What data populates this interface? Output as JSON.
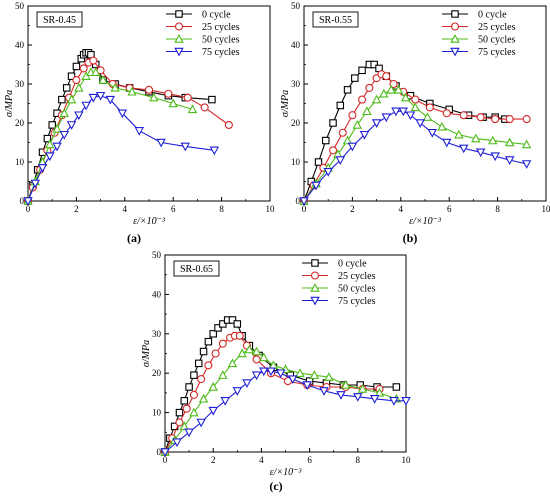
{
  "colors": {
    "0 cycle": "#000000",
    "25 cycles": "#d62728",
    "50 cycles": "#4cbb17",
    "75 cycles": "#1f1fd6"
  },
  "chart_data": [
    {
      "type": "line",
      "title": "SR-0.45",
      "caption": "(a)",
      "xlabel": "ε/×10⁻³",
      "ylabel": "σ/MPa",
      "xlim": [
        0,
        10
      ],
      "ylim": [
        0,
        50
      ],
      "xticks": [
        "0",
        "2",
        "4",
        "6",
        "8",
        "10"
      ],
      "yticks": [
        "0",
        "10",
        "20",
        "30",
        "40",
        "50"
      ],
      "grid": false,
      "legend_position": "top-right",
      "series": [
        {
          "name": "0 cycle",
          "marker": "square",
          "x": [
            0,
            0.2,
            0.4,
            0.6,
            0.8,
            1.0,
            1.2,
            1.4,
            1.6,
            1.8,
            2.0,
            2.2,
            2.3,
            2.4,
            2.5,
            2.6,
            2.8,
            3.1,
            3.6,
            4.2,
            5.0,
            5.8,
            6.5,
            7.6
          ],
          "y": [
            0,
            4,
            8,
            12.5,
            16,
            19.5,
            22.5,
            26,
            29,
            32,
            34.5,
            36.5,
            37.5,
            38,
            38,
            37.5,
            35,
            31,
            30,
            29,
            28,
            27,
            26.5,
            26
          ]
        },
        {
          "name": "25 cycles",
          "marker": "circle",
          "x": [
            0,
            0.2,
            0.5,
            0.8,
            1.1,
            1.4,
            1.7,
            2.0,
            2.3,
            2.5,
            2.7,
            3.0,
            3.5,
            4.2,
            5.0,
            5.8,
            6.6,
            7.3,
            8.3
          ],
          "y": [
            0,
            3.5,
            8,
            13,
            17.5,
            22,
            26.5,
            31,
            34,
            35.5,
            36,
            33.5,
            30,
            29,
            28.5,
            27.5,
            26.5,
            24,
            19.5
          ]
        },
        {
          "name": "50 cycles",
          "marker": "triangle-up",
          "x": [
            0,
            0.3,
            0.6,
            0.9,
            1.2,
            1.5,
            1.8,
            2.1,
            2.4,
            2.6,
            2.8,
            3.1,
            3.6,
            4.3,
            5.2,
            6.0,
            6.8
          ],
          "y": [
            0,
            5,
            10,
            14.5,
            18.5,
            22.5,
            26,
            29,
            32,
            33,
            33,
            31,
            29,
            28,
            26.5,
            25,
            23.5
          ]
        },
        {
          "name": "75 cycles",
          "marker": "triangle-down",
          "x": [
            0,
            0.3,
            0.6,
            0.9,
            1.2,
            1.5,
            1.8,
            2.1,
            2.4,
            2.7,
            3.0,
            3.4,
            3.9,
            4.6,
            5.5,
            6.5,
            7.7
          ],
          "y": [
            0,
            4.5,
            8.5,
            11.5,
            14,
            17,
            19.5,
            22,
            24.5,
            26.5,
            27,
            26,
            22.5,
            18,
            15,
            14,
            13
          ]
        }
      ]
    },
    {
      "type": "line",
      "title": "SR-0.55",
      "caption": "(b)",
      "xlabel": "ε/×10⁻³",
      "ylabel": "σ/MPa",
      "xlim": [
        0,
        10
      ],
      "ylim": [
        0,
        50
      ],
      "xticks": [
        "0",
        "2",
        "4",
        "6",
        "8",
        "10"
      ],
      "yticks": [
        "0",
        "10",
        "20",
        "30",
        "40",
        "50"
      ],
      "grid": false,
      "legend_position": "top-right",
      "series": [
        {
          "name": "0 cycle",
          "marker": "square",
          "x": [
            0,
            0.3,
            0.6,
            0.9,
            1.2,
            1.5,
            1.8,
            2.1,
            2.4,
            2.7,
            2.9,
            3.1,
            3.4,
            3.8,
            4.4,
            5.2,
            6.0,
            6.8,
            7.4,
            7.9,
            8.3
          ],
          "y": [
            0,
            5,
            10,
            15.5,
            20,
            24.5,
            28.5,
            31.5,
            33.5,
            35,
            35,
            34,
            32,
            29.5,
            27,
            25,
            23.5,
            22,
            21.5,
            21.5,
            21
          ]
        },
        {
          "name": "25 cycles",
          "marker": "circle",
          "x": [
            0,
            0.4,
            0.8,
            1.2,
            1.6,
            2.0,
            2.4,
            2.7,
            3.0,
            3.2,
            3.4,
            3.7,
            4.1,
            4.6,
            5.2,
            5.9,
            6.6,
            7.3,
            7.9,
            8.5,
            9.2
          ],
          "y": [
            0,
            4,
            8.5,
            13,
            17.5,
            22,
            26,
            29,
            31.5,
            32.5,
            32,
            30,
            28,
            26,
            24,
            22.5,
            22,
            21.5,
            21,
            21,
            21
          ]
        },
        {
          "name": "50 cycles",
          "marker": "triangle-up",
          "x": [
            0,
            0.5,
            1.0,
            1.4,
            1.8,
            2.2,
            2.6,
            3.0,
            3.3,
            3.6,
            3.9,
            4.2,
            4.6,
            5.1,
            5.7,
            6.4,
            7.1,
            7.8,
            8.5,
            9.2
          ],
          "y": [
            0,
            4.5,
            8.5,
            12,
            15.5,
            19.5,
            23,
            26,
            27.5,
            28.5,
            28.5,
            26.5,
            24,
            21.5,
            19,
            17,
            16,
            15.5,
            15,
            14.5
          ]
        },
        {
          "name": "75 cycles",
          "marker": "triangle-down",
          "x": [
            0,
            0.5,
            1.0,
            1.5,
            2.0,
            2.5,
            3.0,
            3.4,
            3.8,
            4.1,
            4.4,
            4.8,
            5.3,
            5.9,
            6.6,
            7.3,
            7.9,
            8.5,
            9.2
          ],
          "y": [
            0,
            4,
            7.5,
            10.5,
            14,
            17,
            20,
            21.5,
            23,
            23,
            22,
            20,
            17.5,
            15,
            13.5,
            12.5,
            11.5,
            10.5,
            9.5
          ]
        }
      ]
    },
    {
      "type": "line",
      "title": "SR-0.65",
      "caption": "(c)",
      "xlabel": "ε/×10⁻³",
      "ylabel": "σ/MPa",
      "xlim": [
        0,
        10
      ],
      "ylim": [
        0,
        50
      ],
      "xticks": [
        "0",
        "2",
        "4",
        "6",
        "8",
        "10"
      ],
      "yticks": [
        "0",
        "10",
        "20",
        "30",
        "40",
        "50"
      ],
      "grid": false,
      "legend_position": "top-right",
      "series": [
        {
          "name": "0 cycle",
          "marker": "square",
          "x": [
            0,
            0.2,
            0.4,
            0.6,
            0.8,
            1.0,
            1.2,
            1.4,
            1.6,
            1.8,
            2.0,
            2.2,
            2.4,
            2.6,
            2.8,
            3.0,
            3.2,
            3.5,
            3.9,
            4.5,
            5.2,
            6.0,
            6.7,
            7.4,
            8.1,
            8.8,
            9.6
          ],
          "y": [
            0,
            3.5,
            6.5,
            10,
            13,
            16.5,
            19.5,
            22.5,
            25.5,
            28,
            30,
            31.5,
            32.5,
            33.5,
            33.5,
            32.5,
            29.5,
            27,
            24.5,
            21.5,
            19.5,
            18,
            17.5,
            17,
            17,
            16.5,
            16.5
          ]
        },
        {
          "name": "25 cycles",
          "marker": "circle",
          "x": [
            0,
            0.3,
            0.6,
            0.9,
            1.2,
            1.5,
            1.8,
            2.1,
            2.4,
            2.7,
            2.9,
            3.1,
            3.4,
            3.8,
            4.4,
            5.1,
            5.9,
            6.7,
            7.5,
            8.2,
            8.9
          ],
          "y": [
            0,
            3.5,
            7.5,
            11,
            14.5,
            18.5,
            22,
            25,
            27.5,
            29,
            29.5,
            29.5,
            27,
            23.5,
            20,
            18,
            17,
            16.5,
            16.5,
            16,
            16
          ]
        },
        {
          "name": "50 cycles",
          "marker": "triangle-up",
          "x": [
            0,
            0.4,
            0.8,
            1.2,
            1.6,
            2.0,
            2.4,
            2.8,
            3.2,
            3.5,
            3.8,
            4.1,
            4.5,
            5.0,
            5.6,
            6.2,
            6.8,
            7.5,
            8.2,
            8.9,
            9.6
          ],
          "y": [
            0,
            3,
            6.5,
            10,
            13.5,
            16.5,
            19.5,
            22.5,
            25,
            26,
            25.5,
            24,
            22,
            21,
            20,
            19.5,
            19,
            17,
            16,
            15,
            13.5
          ]
        },
        {
          "name": "75 cycles",
          "marker": "triangle-down",
          "x": [
            0,
            0.5,
            1.0,
            1.5,
            2.0,
            2.5,
            3.0,
            3.4,
            3.8,
            4.1,
            4.4,
            4.8,
            5.3,
            5.9,
            6.6,
            7.3,
            8.0,
            8.7,
            9.5,
            10.0
          ],
          "y": [
            0,
            2.5,
            5,
            7.5,
            10.5,
            13,
            15.5,
            17.5,
            19.5,
            20.5,
            20.5,
            20,
            18.5,
            17,
            15.5,
            14.5,
            14,
            13.5,
            13,
            13
          ]
        }
      ]
    }
  ]
}
